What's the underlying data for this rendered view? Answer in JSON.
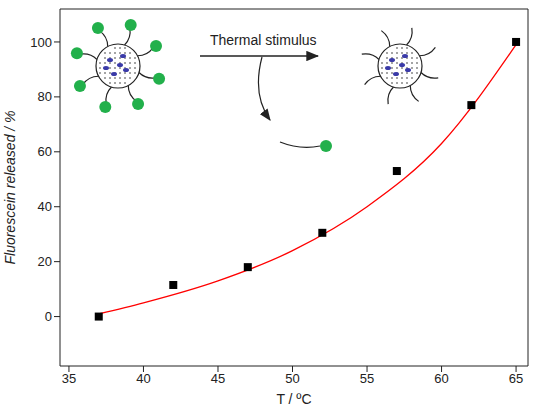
{
  "chart_data": {
    "type": "scatter",
    "x_label": "T / ºC",
    "y_label": "Fluorescein released / %",
    "xlim": [
      34.4,
      65.8
    ],
    "xticks": [
      35,
      40,
      45,
      50,
      55,
      60,
      65
    ],
    "ylim": [
      -18,
      112
    ],
    "yticks": [
      0,
      20,
      40,
      60,
      80,
      100
    ],
    "x": [
      37,
      42,
      47,
      52,
      57,
      62,
      65
    ],
    "values": [
      0,
      11.5,
      18,
      30.5,
      53,
      77,
      100
    ],
    "color": "#000000",
    "marker": "square",
    "fit": {
      "type": "line",
      "color": "#ff0000",
      "line_style": "solid",
      "x": [
        37,
        40,
        45,
        50,
        55,
        60,
        65
      ],
      "values": [
        1,
        5,
        13,
        24,
        40,
        63,
        99
      ]
    }
  },
  "diagram": {
    "arrow_label": "Thermal stimulus"
  }
}
